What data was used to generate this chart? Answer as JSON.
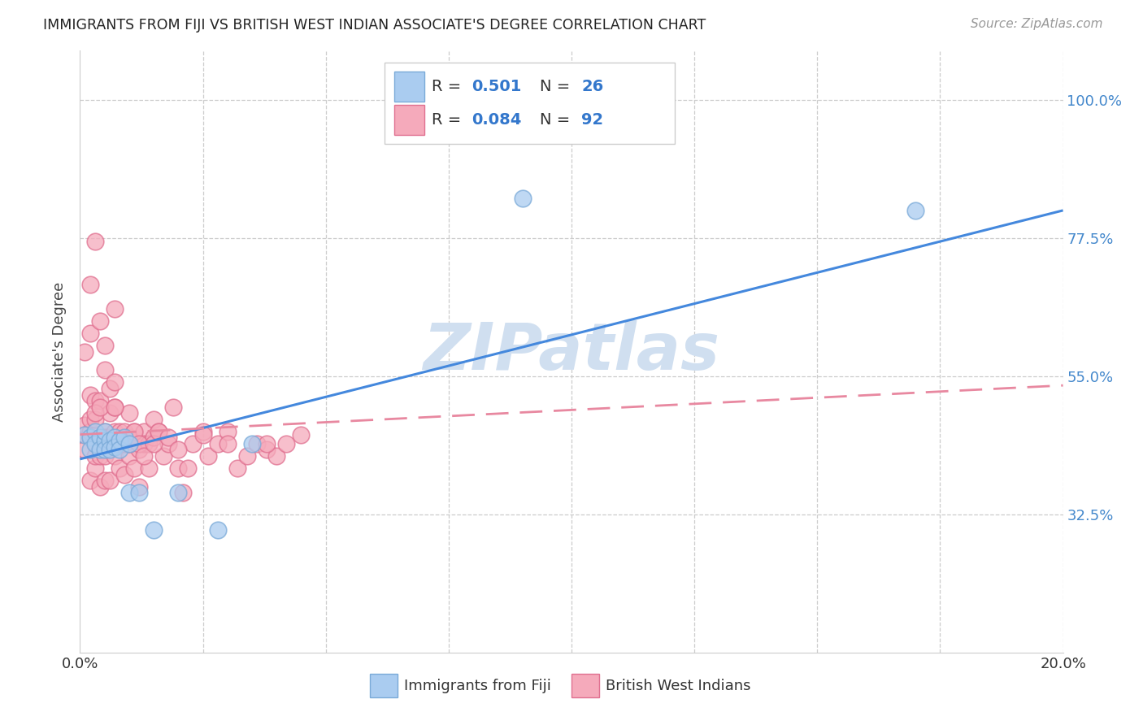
{
  "title": "IMMIGRANTS FROM FIJI VS BRITISH WEST INDIAN ASSOCIATE'S DEGREE CORRELATION CHART",
  "source": "Source: ZipAtlas.com",
  "ylabel": "Associate's Degree",
  "xlim": [
    0.0,
    0.2
  ],
  "ylim": [
    0.1,
    1.08
  ],
  "xtick_vals": [
    0.0,
    0.025,
    0.05,
    0.075,
    0.1,
    0.125,
    0.15,
    0.175,
    0.2
  ],
  "ytick_positions": [
    0.325,
    0.55,
    0.775,
    1.0
  ],
  "ytick_labels": [
    "32.5%",
    "55.0%",
    "77.5%",
    "100.0%"
  ],
  "fiji_color": "#aaccf0",
  "fiji_edge_color": "#7aaad8",
  "bwi_color": "#f5aabb",
  "bwi_edge_color": "#e07090",
  "fiji_R": 0.501,
  "fiji_N": 26,
  "bwi_R": 0.084,
  "bwi_N": 92,
  "fiji_line_color": "#4488dd",
  "bwi_line_color": "#e888a0",
  "watermark_color": "#d0dff0",
  "fiji_line_x0": 0.0,
  "fiji_line_y0": 0.415,
  "fiji_line_x1": 0.2,
  "fiji_line_y1": 0.82,
  "bwi_line_x0": 0.0,
  "bwi_line_y0": 0.455,
  "bwi_line_x1": 0.2,
  "bwi_line_y1": 0.535,
  "fiji_x": [
    0.001,
    0.002,
    0.002,
    0.003,
    0.003,
    0.004,
    0.004,
    0.005,
    0.005,
    0.005,
    0.006,
    0.006,
    0.007,
    0.007,
    0.008,
    0.008,
    0.009,
    0.01,
    0.01,
    0.012,
    0.015,
    0.02,
    0.028,
    0.035,
    0.09,
    0.17
  ],
  "fiji_y": [
    0.455,
    0.45,
    0.43,
    0.46,
    0.44,
    0.45,
    0.43,
    0.445,
    0.43,
    0.46,
    0.445,
    0.43,
    0.45,
    0.435,
    0.445,
    0.43,
    0.45,
    0.36,
    0.44,
    0.36,
    0.3,
    0.36,
    0.3,
    0.44,
    0.84,
    0.82
  ],
  "bwi_x": [
    0.001,
    0.001,
    0.001,
    0.002,
    0.002,
    0.002,
    0.002,
    0.002,
    0.002,
    0.003,
    0.003,
    0.003,
    0.003,
    0.003,
    0.004,
    0.004,
    0.004,
    0.004,
    0.004,
    0.005,
    0.005,
    0.005,
    0.005,
    0.005,
    0.005,
    0.006,
    0.006,
    0.006,
    0.006,
    0.007,
    0.007,
    0.007,
    0.007,
    0.008,
    0.008,
    0.008,
    0.009,
    0.009,
    0.009,
    0.01,
    0.01,
    0.01,
    0.011,
    0.011,
    0.012,
    0.012,
    0.013,
    0.013,
    0.014,
    0.014,
    0.015,
    0.015,
    0.016,
    0.017,
    0.018,
    0.019,
    0.02,
    0.021,
    0.022,
    0.023,
    0.025,
    0.026,
    0.028,
    0.03,
    0.032,
    0.034,
    0.036,
    0.038,
    0.04,
    0.042,
    0.001,
    0.002,
    0.003,
    0.003,
    0.004,
    0.005,
    0.006,
    0.007,
    0.007,
    0.009,
    0.01,
    0.011,
    0.012,
    0.013,
    0.015,
    0.016,
    0.018,
    0.02,
    0.025,
    0.03,
    0.038,
    0.045
  ],
  "bwi_y": [
    0.455,
    0.43,
    0.47,
    0.62,
    0.45,
    0.38,
    0.52,
    0.46,
    0.48,
    0.4,
    0.44,
    0.51,
    0.42,
    0.48,
    0.44,
    0.51,
    0.42,
    0.37,
    0.64,
    0.46,
    0.43,
    0.6,
    0.42,
    0.38,
    0.45,
    0.44,
    0.49,
    0.38,
    0.45,
    0.46,
    0.5,
    0.42,
    0.66,
    0.46,
    0.4,
    0.44,
    0.46,
    0.39,
    0.44,
    0.45,
    0.49,
    0.42,
    0.46,
    0.4,
    0.37,
    0.43,
    0.46,
    0.44,
    0.4,
    0.44,
    0.45,
    0.48,
    0.46,
    0.42,
    0.44,
    0.5,
    0.4,
    0.36,
    0.4,
    0.44,
    0.46,
    0.42,
    0.44,
    0.46,
    0.4,
    0.42,
    0.44,
    0.43,
    0.42,
    0.44,
    0.59,
    0.7,
    0.77,
    0.49,
    0.5,
    0.56,
    0.53,
    0.54,
    0.5,
    0.44,
    0.44,
    0.46,
    0.44,
    0.42,
    0.44,
    0.46,
    0.45,
    0.43,
    0.455,
    0.44,
    0.44,
    0.455
  ]
}
